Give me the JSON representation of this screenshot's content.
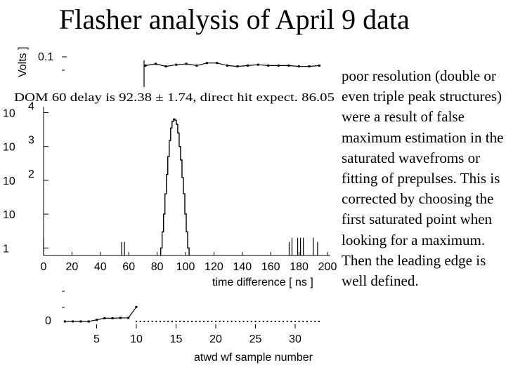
{
  "title": "Flasher analysis of April 9 data",
  "caption": "poor resolution (double or even triple peak structures) were a result of false maximum estimation in the saturated wavefroms or fitting of prepulses. This is corrected by choosing the first saturated point when looking for a maximum. Then the leading edge is well defined.",
  "chart_data": [
    {
      "type": "line",
      "title": "",
      "xlabel": "",
      "ylabel": "Volts ]",
      "ytick_labels": [
        "0.1"
      ],
      "x": [
        0,
        2,
        4,
        6,
        8,
        10,
        12,
        14,
        16,
        18,
        20,
        22,
        24,
        26,
        28,
        30,
        32,
        34
      ],
      "y": [
        0.095,
        0.097,
        0.094,
        0.096,
        0.097,
        0.095,
        0.098,
        0.098,
        0.095,
        0.094,
        0.095,
        0.096,
        0.095,
        0.095,
        0.095,
        0.094,
        0.094,
        0.095
      ],
      "grid": false
    },
    {
      "type": "bar",
      "title": "DOM 60 delay is 92.38 ± 1.74, direct hit expect. 86.05",
      "xlabel": "time difference [ ns ]",
      "ylabel": "",
      "yscale": "log",
      "ylim": [
        0.6,
        15000
      ],
      "xlim": [
        0,
        200
      ],
      "xtick_labels": [
        "0",
        "20",
        "40",
        "60",
        "80",
        "100",
        "120",
        "140",
        "160",
        "180",
        "200"
      ],
      "ytick_labels": [
        "1",
        "10",
        "10 2",
        "10 3",
        "10 4"
      ],
      "peak": {
        "x": [
          83,
          84,
          85,
          86,
          87,
          88,
          89,
          90,
          91,
          92,
          93,
          94,
          95,
          96,
          97,
          98,
          99,
          100,
          101,
          102
        ],
        "values": [
          1,
          3,
          10,
          40,
          150,
          500,
          1500,
          3500,
          5500,
          6500,
          6000,
          4500,
          2500,
          1000,
          400,
          120,
          40,
          10,
          3,
          1
        ]
      },
      "spikes": {
        "x": [
          0,
          55,
          57,
          173,
          175,
          179,
          181,
          183,
          190,
          193
        ],
        "values": [
          2,
          1.5,
          1.5,
          1.5,
          2,
          2,
          2,
          2,
          2,
          1.5
        ]
      },
      "grid": false
    },
    {
      "type": "line",
      "title": "",
      "xlabel": "atwd wf sample number",
      "ylabel": "",
      "ytick_labels": [
        "0"
      ],
      "xtick_labels": [
        "5",
        "10",
        "15",
        "20",
        "25",
        "30"
      ],
      "x": [
        1,
        2,
        3,
        4,
        5,
        6,
        7,
        8,
        9,
        10
      ],
      "y": [
        0.0,
        0.0,
        0.0,
        0.0,
        0.01,
        0.02,
        0.02,
        0.022,
        0.022,
        0.09
      ],
      "grid": false
    }
  ]
}
